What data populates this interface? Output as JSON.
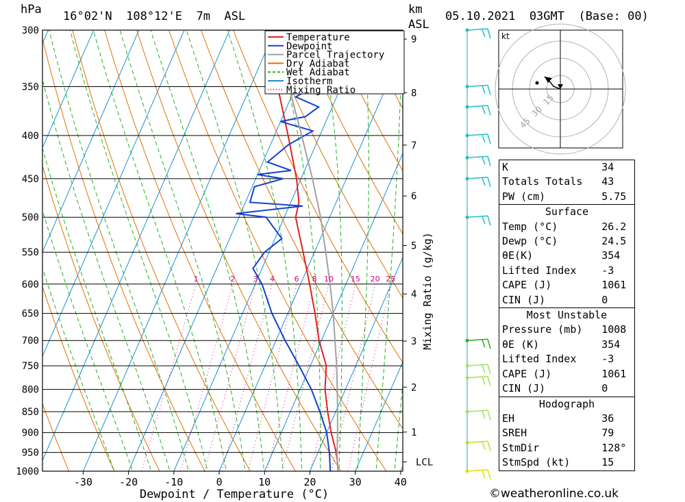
{
  "header": {
    "pressure_unit": "hPa",
    "location": "16°02'N  108°12'E  7m  ASL",
    "height_unit_line1": "km",
    "height_unit_line2": "ASL",
    "datetime": "05.10.2021  03GMT  (Base: 00)"
  },
  "chart_data": {
    "type": "line",
    "title": "16°02'N  108°12'E  7m  ASL",
    "xlabel": "Dewpoint / Temperature (°C)",
    "ylabel": "hPa",
    "right_axis_label": "Mixing Ratio (g/kg)",
    "xlim": [
      -40,
      40
    ],
    "ylim": [
      1000,
      300
    ],
    "y_scale": "log",
    "x_ticks": [
      -30,
      -20,
      -10,
      0,
      10,
      20,
      30,
      40
    ],
    "pressure_levels": [
      300,
      350,
      400,
      450,
      500,
      550,
      600,
      650,
      700,
      750,
      800,
      850,
      900,
      950,
      1000
    ],
    "height_ticks_km": [
      1,
      2,
      3,
      4,
      5,
      6,
      7,
      8,
      9
    ],
    "lcl_label": "LCL",
    "lcl_pressure": 975,
    "mixing_ratio_labels": [
      "1",
      "2",
      "3",
      "4",
      "6",
      "8",
      "10",
      "15",
      "20",
      "25"
    ],
    "mixing_ratio_label_pressure": 590,
    "legend": [
      {
        "name": "Temperature",
        "color": "#e02020",
        "dash": "solid"
      },
      {
        "name": "Dewpoint",
        "color": "#1040d0",
        "dash": "solid"
      },
      {
        "name": "Parcel Trajectory",
        "color": "#a0a0a0",
        "dash": "solid"
      },
      {
        "name": "Dry Adiabat",
        "color": "#e07000",
        "dash": "solid"
      },
      {
        "name": "Wet Adiabat",
        "color": "#20b020",
        "dash": "dashed"
      },
      {
        "name": "Isotherm",
        "color": "#1890d0",
        "dash": "solid"
      },
      {
        "name": "Mixing Ratio",
        "color": "#d00080",
        "dash": "dotted"
      }
    ],
    "legend_position": "top-right",
    "series": [
      {
        "name": "Temperature",
        "color": "#e02020",
        "points": [
          [
            1000,
            26.2
          ],
          [
            975,
            25.2
          ],
          [
            950,
            24.0
          ],
          [
            925,
            22.5
          ],
          [
            900,
            21.0
          ],
          [
            850,
            18.2
          ],
          [
            800,
            15.5
          ],
          [
            750,
            13.5
          ],
          [
            700,
            9.5
          ],
          [
            650,
            6.0
          ],
          [
            600,
            2.0
          ],
          [
            550,
            -2.5
          ],
          [
            500,
            -7.5
          ],
          [
            480,
            -8.2
          ],
          [
            450,
            -11.0
          ],
          [
            400,
            -17.0
          ],
          [
            350,
            -24.0
          ],
          [
            320,
            -29.0
          ],
          [
            300,
            -32.0
          ]
        ]
      },
      {
        "name": "Dewpoint",
        "color": "#1040d0",
        "points": [
          [
            1000,
            24.5
          ],
          [
            950,
            22.5
          ],
          [
            900,
            20.0
          ],
          [
            850,
            16.5
          ],
          [
            800,
            12.5
          ],
          [
            750,
            7.5
          ],
          [
            700,
            2.0
          ],
          [
            650,
            -3.5
          ],
          [
            600,
            -8.5
          ],
          [
            575,
            -12.0
          ],
          [
            550,
            -11.0
          ],
          [
            530,
            -8.5
          ],
          [
            500,
            -14.0
          ],
          [
            495,
            -21.0
          ],
          [
            485,
            -7.0
          ],
          [
            480,
            -19.0
          ],
          [
            460,
            -19.5
          ],
          [
            450,
            -14.0
          ],
          [
            445,
            -20.0
          ],
          [
            440,
            -13.0
          ],
          [
            430,
            -19.0
          ],
          [
            410,
            -16.0
          ],
          [
            395,
            -12.0
          ],
          [
            385,
            -20.0
          ],
          [
            380,
            -15.0
          ],
          [
            370,
            -13.0
          ],
          [
            360,
            -19.0
          ],
          [
            350,
            -16.0
          ],
          [
            330,
            -22.0
          ],
          [
            300,
            -29.0
          ]
        ]
      },
      {
        "name": "Parcel Trajectory",
        "color": "#a0a0a0",
        "points": [
          [
            1000,
            26.2
          ],
          [
            975,
            25.2
          ],
          [
            950,
            24.2
          ],
          [
            900,
            22.4
          ],
          [
            850,
            20.4
          ],
          [
            800,
            18.2
          ],
          [
            750,
            15.8
          ],
          [
            700,
            13.0
          ],
          [
            650,
            10.0
          ],
          [
            600,
            6.5
          ],
          [
            550,
            2.5
          ],
          [
            500,
            -2.0
          ],
          [
            450,
            -7.5
          ],
          [
            400,
            -14.0
          ],
          [
            350,
            -21.5
          ],
          [
            300,
            -31.0
          ]
        ]
      }
    ]
  },
  "hodograph": {
    "unit": "kt",
    "ring_labels": [
      "15",
      "30",
      "45"
    ]
  },
  "wind_barbs": [
    {
      "pressure": 300,
      "color": "#20c0c0"
    },
    {
      "pressure": 350,
      "color": "#20c0c0"
    },
    {
      "pressure": 370,
      "color": "#20c0c0"
    },
    {
      "pressure": 400,
      "color": "#20c0c0"
    },
    {
      "pressure": 425,
      "color": "#20c0c0"
    },
    {
      "pressure": 450,
      "color": "#20c0c0"
    },
    {
      "pressure": 500,
      "color": "#20c0c0"
    },
    {
      "pressure": 700,
      "color": "#20b020"
    },
    {
      "pressure": 750,
      "color": "#a0e060"
    },
    {
      "pressure": 775,
      "color": "#a0e060"
    },
    {
      "pressure": 850,
      "color": "#a0e060"
    },
    {
      "pressure": 925,
      "color": "#c0e020"
    },
    {
      "pressure": 1000,
      "color": "#e0e000"
    }
  ],
  "indices": [
    {
      "label": "K",
      "value": "34"
    },
    {
      "label": "Totals Totals",
      "value": "43"
    },
    {
      "label": "PW (cm)",
      "value": "5.75"
    }
  ],
  "surface": {
    "title": "Surface",
    "rows": [
      {
        "label": "Temp (°C)",
        "value": "26.2"
      },
      {
        "label": "Dewp (°C)",
        "value": "24.5"
      },
      {
        "label": "θE(K)",
        "value": "354"
      },
      {
        "label": "Lifted Index",
        "value": "-3"
      },
      {
        "label": "CAPE (J)",
        "value": "1061"
      },
      {
        "label": "CIN (J)",
        "value": "0"
      }
    ]
  },
  "most_unstable": {
    "title": "Most Unstable",
    "rows": [
      {
        "label": "Pressure (mb)",
        "value": "1008"
      },
      {
        "label": "θE (K)",
        "value": "354"
      },
      {
        "label": "Lifted Index",
        "value": "-3"
      },
      {
        "label": "CAPE (J)",
        "value": "1061"
      },
      {
        "label": "CIN (J)",
        "value": "0"
      }
    ]
  },
  "hodograph_table": {
    "title": "Hodograph",
    "rows": [
      {
        "label": "EH",
        "value": "36"
      },
      {
        "label": "SREH",
        "value": "79"
      },
      {
        "label": "StmDir",
        "value": "128°"
      },
      {
        "label": "StmSpd (kt)",
        "value": "15"
      }
    ]
  },
  "footer": {
    "copyright_symbol": "©",
    "site": "weatheronline.co.uk"
  }
}
